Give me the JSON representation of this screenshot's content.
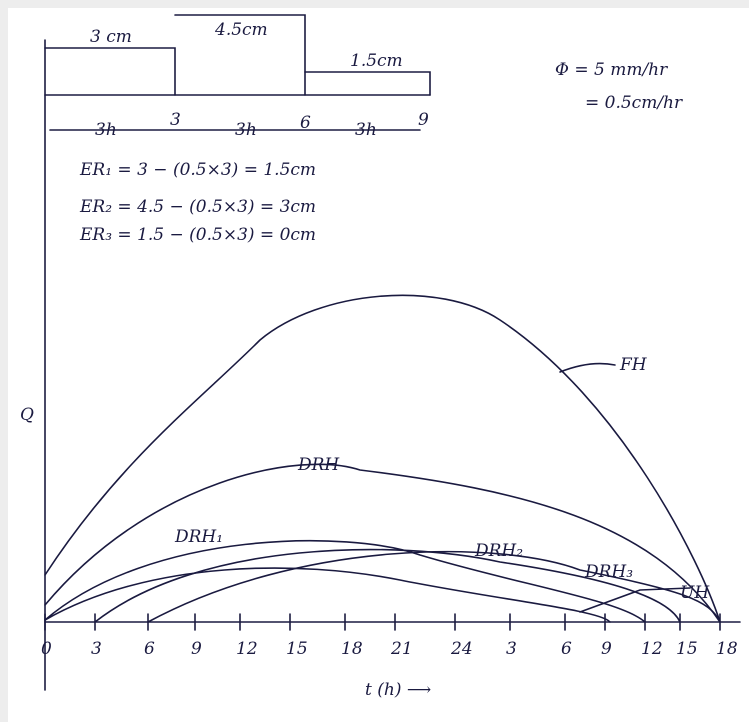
{
  "hyetograph": {
    "blocks": [
      "3 cm",
      "4.5cm",
      "1.5cm"
    ],
    "times": [
      "3h",
      "3",
      "3h",
      "6",
      "3h",
      "9"
    ]
  },
  "phi": {
    "line1": "Φ = 5 mm/hr",
    "line2": "= 0.5cm/hr"
  },
  "equations": [
    "ER₁ = 3 − (0.5×3) = 1.5cm",
    "ER₂ = 4.5 − (0.5×3) = 3cm",
    "ER₃ = 1.5 − (0.5×3) = 0cm"
  ],
  "graph": {
    "y_label": "Q",
    "x_label": "t (h) ⟶",
    "curve_labels": [
      "FH",
      "DRH",
      "DRH₁",
      "DRH₂",
      "DRH₃",
      "UH"
    ],
    "ticks": [
      "0",
      "3",
      "6",
      "9",
      "12",
      "15",
      "18",
      "21",
      "24",
      "3",
      "6",
      "9",
      "12",
      "15",
      "18"
    ]
  }
}
